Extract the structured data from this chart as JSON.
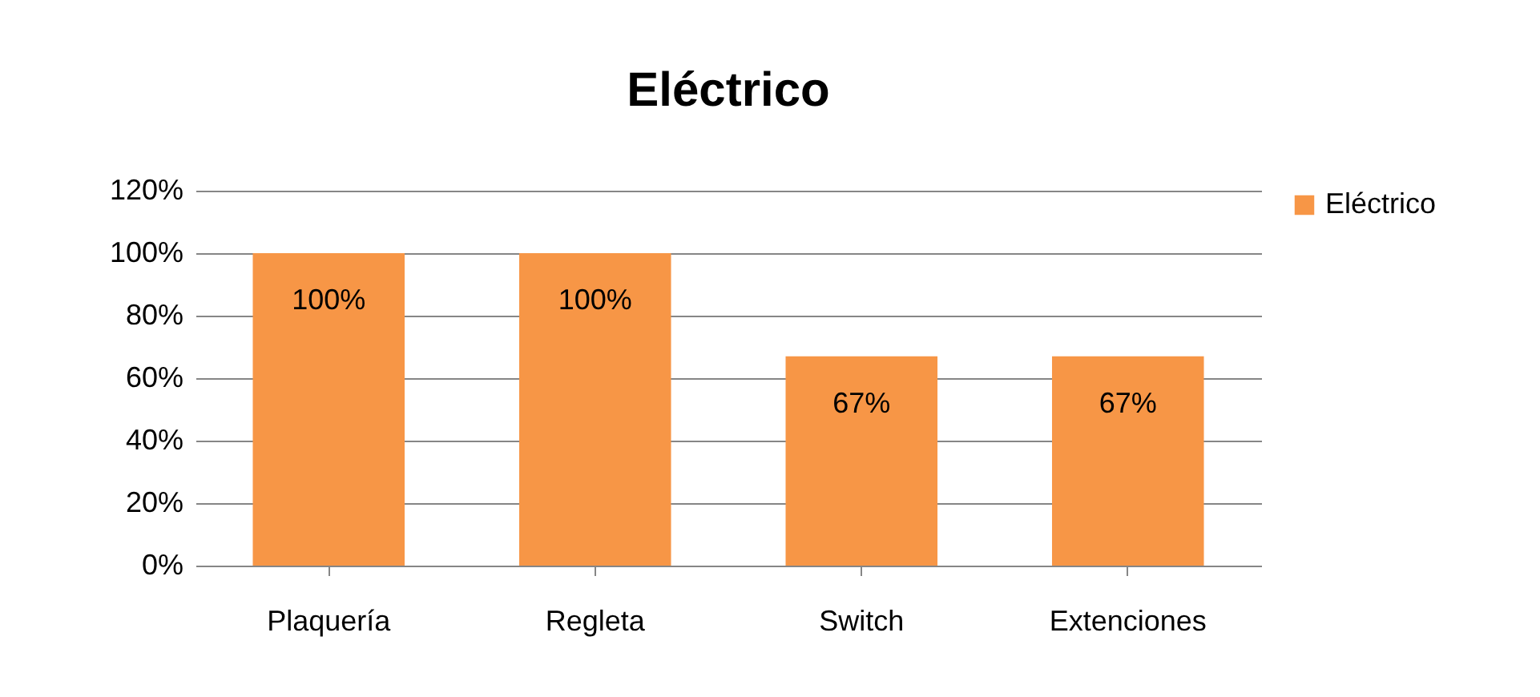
{
  "chart_data": {
    "type": "bar",
    "title": "Eléctrico",
    "categories": [
      "Plaquería",
      "Regleta",
      "Switch",
      "Extenciones"
    ],
    "series": [
      {
        "name": "Eléctrico",
        "color": "#f79646",
        "values": [
          100,
          100,
          67,
          67
        ],
        "value_labels": [
          "100%",
          "100%",
          "67%",
          "67%"
        ]
      }
    ],
    "ylim": [
      0,
      120
    ],
    "yticks": [
      {
        "value": 0,
        "label": "0%"
      },
      {
        "value": 20,
        "label": "20%"
      },
      {
        "value": 40,
        "label": "40%"
      },
      {
        "value": 60,
        "label": "60%"
      },
      {
        "value": 80,
        "label": "80%"
      },
      {
        "value": 100,
        "label": "100%"
      },
      {
        "value": 120,
        "label": "120%"
      }
    ],
    "grid": "y",
    "legend": "right"
  }
}
